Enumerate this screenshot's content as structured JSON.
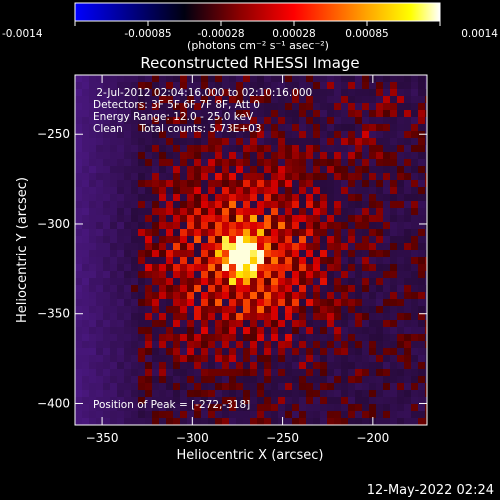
{
  "colorbar": {
    "ticks": [
      "-0.0014",
      "-0.00085",
      "-0.00028",
      "0.00028",
      "0.00085",
      "0.0014"
    ],
    "unit_label": "(photons cm⁻² s⁻¹ asec⁻²)",
    "colors": [
      "#0000ff",
      "#000000",
      "#8b0000",
      "#ff0000",
      "#ffa500",
      "#ffff00",
      "#ffffff"
    ]
  },
  "chart_data": {
    "type": "heatmap",
    "title": "Reconstructed RHESSI Image",
    "xlabel": "Heliocentric X (arcsec)",
    "ylabel": "Heliocentric Y (arcsec)",
    "xlim": [
      -365,
      -170
    ],
    "ylim": [
      -412,
      -217
    ],
    "xticks": [
      -350,
      -300,
      -250,
      -200
    ],
    "yticks": [
      -250,
      -300,
      -350,
      -400
    ],
    "xtick_labels": [
      "−350",
      "−300",
      "−250",
      "−200"
    ],
    "ytick_labels": [
      "−250",
      "−300",
      "−350",
      "−400"
    ],
    "peak": {
      "x": -272,
      "y": -318
    },
    "info_lines": [
      " 2-Jul-2012 02:04:16.000 to 02:10:16.000",
      "Detectors: 3F 5F 6F 7F 8F, Att 0",
      "Energy Range: 12.0 - 25.0 keV",
      "Clean     Total counts: 5.73E+03"
    ],
    "peak_label": "Position of Peak = [-272,-318]"
  },
  "footer": {
    "timestamp": "12-May-2022 02:24"
  }
}
